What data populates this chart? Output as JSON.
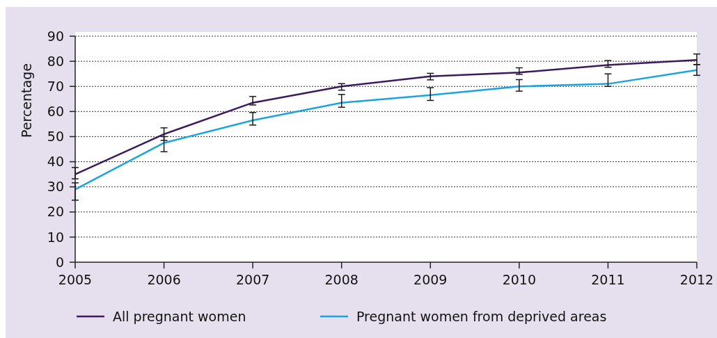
{
  "chart_data": {
    "type": "line",
    "ylabel": "Percentage",
    "x": [
      2005,
      2006,
      2007,
      2008,
      2009,
      2010,
      2011,
      2012
    ],
    "xlim": [
      2005,
      2012
    ],
    "xticks": [
      2005,
      2006,
      2007,
      2008,
      2009,
      2010,
      2011,
      2012
    ],
    "ylim": [
      0,
      90
    ],
    "yticks": [
      0,
      10,
      20,
      30,
      40,
      50,
      60,
      70,
      80,
      90
    ],
    "grid": "y",
    "legend": "bottom",
    "marker": "none",
    "line_style": "solid",
    "series": [
      {
        "name": "All pregnant women",
        "color": "#3d1a5e",
        "values": [
          35,
          51,
          63.5,
          70,
          74,
          75.5,
          78.5,
          80.5
        ],
        "errors": [
          [
            33.2,
            37.7
          ],
          [
            48.5,
            53.5
          ],
          [
            62.6,
            66
          ],
          [
            68.5,
            71.1
          ],
          [
            72.6,
            75.2
          ],
          [
            74.8,
            77.4
          ],
          [
            77.6,
            80.3
          ],
          [
            78.7,
            82.9
          ]
        ]
      },
      {
        "name": "Pregnant women from deprived areas",
        "color": "#1aa3e0",
        "values": [
          29,
          47.5,
          56.5,
          63.5,
          66.5,
          70,
          71,
          76.5
        ],
        "errors": [
          [
            24.7,
            31.6
          ],
          [
            44,
            50
          ],
          [
            54.6,
            59.6
          ],
          [
            61.7,
            66.8
          ],
          [
            64.4,
            69.5
          ],
          [
            68.1,
            72.7
          ],
          [
            70,
            75
          ],
          [
            74.4,
            78.7
          ]
        ]
      }
    ]
  }
}
